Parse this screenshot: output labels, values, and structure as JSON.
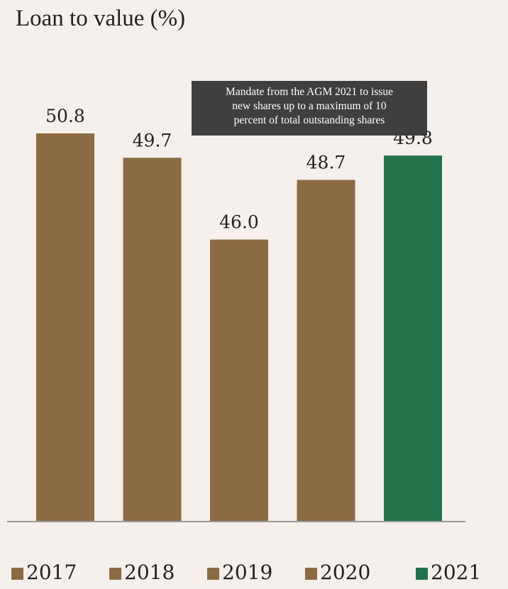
{
  "chart_data": {
    "type": "bar",
    "title": "Loan to value (%)",
    "categories": [
      "2017",
      "2018",
      "2019",
      "2020",
      "2021"
    ],
    "values": [
      50.8,
      49.7,
      46.0,
      48.7,
      49.8
    ],
    "value_labels": [
      "50.8",
      "49.7",
      "46.0",
      "48.7",
      "49.8"
    ],
    "colors": [
      "#8b6b43",
      "#8b6b43",
      "#8b6b43",
      "#8b6b43",
      "#23714a"
    ],
    "baseline_color": "#9a9a9a",
    "grid": false,
    "legend_placement": "bottom",
    "legend": [
      {
        "label": "2017",
        "color": "#8b6b43"
      },
      {
        "label": "2018",
        "color": "#8b6b43"
      },
      {
        "label": "2019",
        "color": "#8b6b43"
      },
      {
        "label": "2020",
        "color": "#8b6b43"
      },
      {
        "label": "2021",
        "color": "#23714a"
      }
    ],
    "annotation": {
      "lines": [
        "Mandate from the AGM 2021 to issue",
        "new shares up to a maximum of 10",
        "percent of total outstanding shares"
      ]
    }
  }
}
